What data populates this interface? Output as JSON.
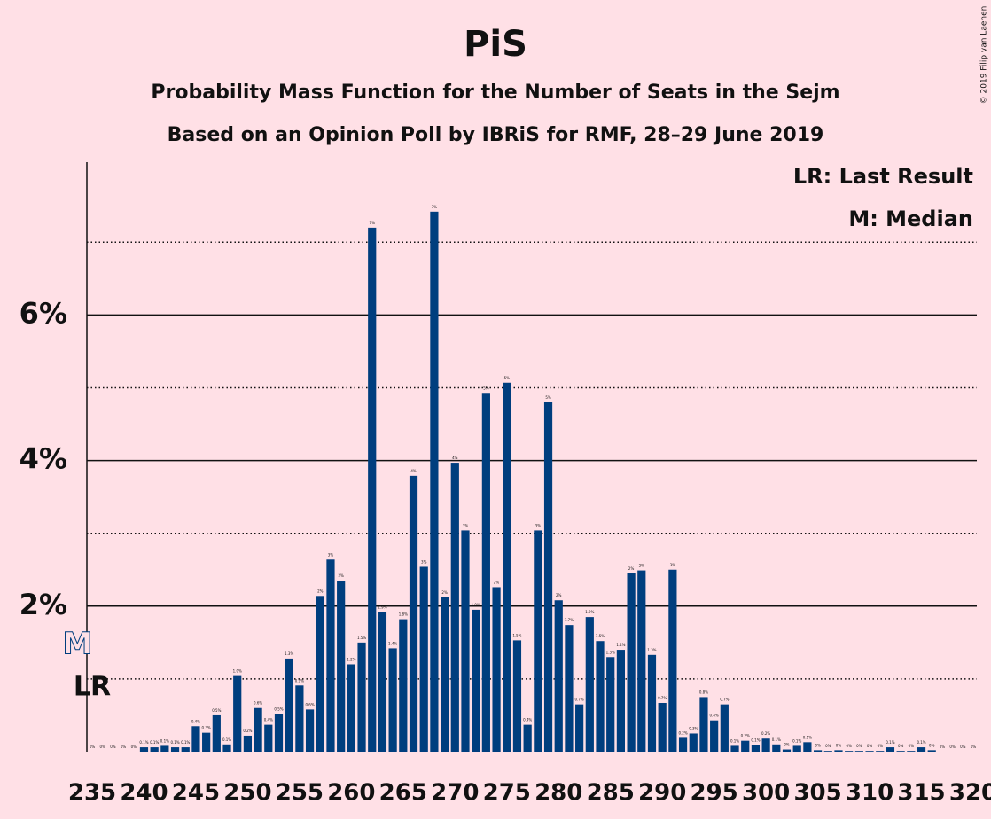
{
  "chart_data": {
    "type": "bar",
    "title": "PiS",
    "subtitle": "Probability Mass Function for the Number of Seats in the Sejm",
    "subtitle2": "Based on an Opinion Poll by IBRiS for RMF, 28–29 June 2019",
    "copyright": "© 2019 Filip van Laenen",
    "legend": [
      "LR: Last Result",
      "M: Median"
    ],
    "last_result": {
      "label": "LR",
      "seat": "235"
    },
    "median": {
      "label": "M",
      "seat": "271"
    },
    "color": "#003e7e",
    "categories": [
      "235",
      null,
      null,
      null,
      null,
      "240",
      null,
      null,
      null,
      null,
      "245",
      null,
      null,
      null,
      null,
      "250",
      null,
      null,
      null,
      null,
      "255",
      null,
      null,
      null,
      null,
      "260",
      null,
      null,
      null,
      null,
      "265",
      null,
      null,
      null,
      null,
      "270",
      null,
      null,
      null,
      null,
      "275",
      null,
      null,
      null,
      null,
      "280",
      null,
      null,
      null,
      null,
      "285",
      null,
      null,
      null,
      null,
      "290",
      null,
      null,
      null,
      null,
      "295",
      null,
      null,
      null,
      null,
      "300",
      null,
      null,
      null,
      null,
      "305",
      null,
      null,
      null,
      null,
      "310",
      null,
      null,
      null,
      null,
      "315",
      null,
      null,
      null,
      null,
      "320"
    ],
    "values": [
      0,
      0,
      0,
      0,
      0,
      0.06,
      0.06,
      0.08,
      0.06,
      0.06,
      0.35,
      0.26,
      0.5,
      0.1,
      1.04,
      0.22,
      0.6,
      0.37,
      0.52,
      1.28,
      0.91,
      0.58,
      2.14,
      2.64,
      2.35,
      1.2,
      1.5,
      7.2,
      1.92,
      1.42,
      1.82,
      3.79,
      2.54,
      7.42,
      2.12,
      3.97,
      3.04,
      1.95,
      4.93,
      2.26,
      5.07,
      1.53,
      0.37,
      3.04,
      4.8,
      2.08,
      1.74,
      0.65,
      1.85,
      1.52,
      1.3,
      1.4,
      2.45,
      2.49,
      1.33,
      0.67,
      2.5,
      0.19,
      0.25,
      0.75,
      0.43,
      0.65,
      0.08,
      0.15,
      0.09,
      0.18,
      0.1,
      0.03,
      0.08,
      0.13,
      0.02,
      0.01,
      0.02,
      0.01,
      0.01,
      0.01,
      0.01,
      0.06,
      0.01,
      0.01,
      0.06,
      0.02,
      0,
      0,
      0,
      0
    ],
    "value_labels": [
      "0%",
      "0%",
      "0%",
      "0%",
      "0%",
      "0.1%",
      "0.1%",
      "0.1%",
      "0.1%",
      "0.1%",
      "0.4%",
      "0.3%",
      "0.5%",
      "0.1%",
      "1.0%",
      "0.2%",
      "0.6%",
      "0.4%",
      "0.5%",
      "1.3%",
      "0.9%",
      "0.6%",
      "2%",
      "3%",
      "2%",
      "1.2%",
      "1.5%",
      "7%",
      "1.9%",
      "1.4%",
      "1.8%",
      "4%",
      "3%",
      "7%",
      "2%",
      "4%",
      "3%",
      "1.9%",
      "5%",
      "2%",
      "5%",
      "1.5%",
      "0.4%",
      "3%",
      "5%",
      "2%",
      "1.7%",
      "0.7%",
      "1.9%",
      "1.5%",
      "1.3%",
      "1.4%",
      "2%",
      "2%",
      "1.3%",
      "0.7%",
      "3%",
      "0.2%",
      "0.3%",
      "0.8%",
      "0.4%",
      "0.7%",
      "0.1%",
      "0.2%",
      "0.1%",
      "0.2%",
      "0.1%",
      "0%",
      "0.1%",
      "0.1%",
      "0%",
      "0%",
      "0%",
      "0%",
      "0%",
      "0%",
      "0%",
      "0.1%",
      "0%",
      "0%",
      "0.1%",
      "0%",
      "0%",
      "0%",
      "0%",
      "0%"
    ],
    "ylim": [
      0,
      8.1
    ],
    "yticks": [
      {
        "value": 2,
        "label": "2%"
      },
      {
        "value": 4,
        "label": "4%"
      },
      {
        "value": 6,
        "label": "6%"
      }
    ],
    "minor_yticks": [
      1,
      3,
      5,
      7
    ],
    "grid": true
  }
}
